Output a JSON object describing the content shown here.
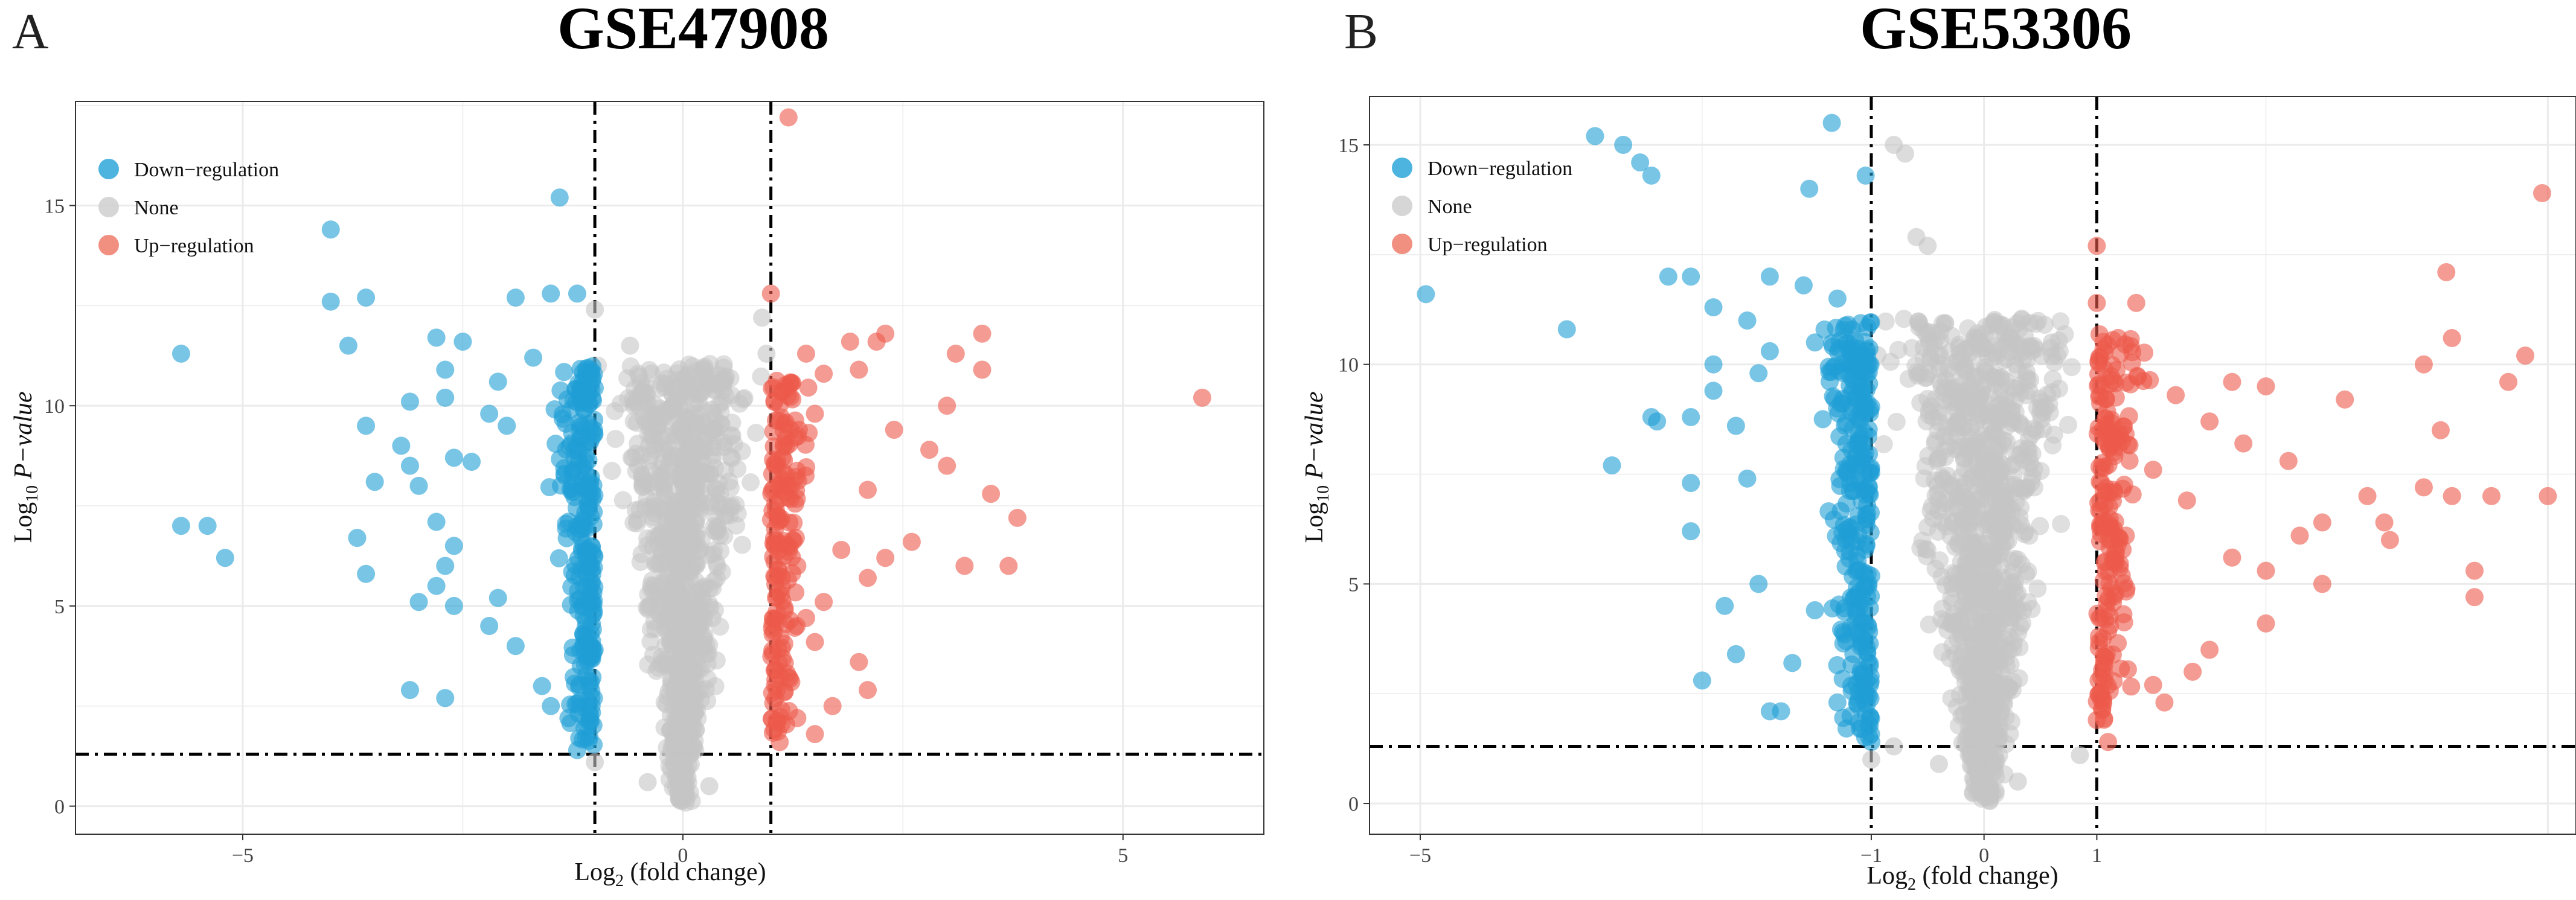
{
  "figure": {
    "background": "#ffffff",
    "grid_color": "#ebebeb",
    "border_color": "#333333"
  },
  "chart_data": [
    {
      "type": "scatter",
      "panel_label": "A",
      "title": "GSE47908",
      "xlabel": {
        "prefix": "Log",
        "sub": "2",
        "rest": " (fold change)"
      },
      "ylabel": {
        "prefix": "Log",
        "sub": "10",
        "plain": " ",
        "italic": "P−value"
      },
      "xlim": [
        -6.9,
        6.6
      ],
      "ylim": [
        -0.7,
        17.6
      ],
      "xticks": [
        -5,
        0,
        5
      ],
      "xtick_labels": [
        "−5",
        "0",
        "5"
      ],
      "yticks": [
        0,
        5,
        10,
        15
      ],
      "ytick_labels": [
        "0",
        "5",
        "10",
        "15"
      ],
      "fc_threshold": [
        -1,
        1
      ],
      "p_threshold": 1.3,
      "legend": [
        {
          "label": "Down−regulation",
          "color": "#2ea7d9"
        },
        {
          "label": "None",
          "color": "#cfcfcf"
        },
        {
          "label": "Up−regulation",
          "color": "#ef7b6b"
        }
      ],
      "series": [
        {
          "name": "Down−regulation",
          "color": "#1f9fd6",
          "points": [
            [
              -4.0,
              14.4
            ],
            [
              -1.4,
              15.2
            ],
            [
              -3.6,
              12.7
            ],
            [
              -4.0,
              12.6
            ],
            [
              -1.5,
              12.8
            ],
            [
              -1.9,
              12.7
            ],
            [
              -1.2,
              12.8
            ],
            [
              -5.7,
              11.3
            ],
            [
              -3.8,
              11.5
            ],
            [
              -2.8,
              11.7
            ],
            [
              -2.5,
              11.6
            ],
            [
              -1.7,
              11.2
            ],
            [
              -2.7,
              10.9
            ],
            [
              -3.1,
              10.1
            ],
            [
              -2.1,
              10.6
            ],
            [
              -2.7,
              10.2
            ],
            [
              -2.2,
              9.8
            ],
            [
              -3.6,
              9.5
            ],
            [
              -2.0,
              9.5
            ],
            [
              -3.2,
              9.0
            ],
            [
              -3.1,
              8.5
            ],
            [
              -3.5,
              8.1
            ],
            [
              -3.0,
              8.0
            ],
            [
              -2.4,
              8.6
            ],
            [
              -2.6,
              8.7
            ],
            [
              -5.7,
              7.0
            ],
            [
              -5.4,
              7.0
            ],
            [
              -3.7,
              6.7
            ],
            [
              -5.2,
              6.2
            ],
            [
              -2.8,
              7.1
            ],
            [
              -2.6,
              6.5
            ],
            [
              -2.7,
              6.0
            ],
            [
              -3.6,
              5.8
            ],
            [
              -2.8,
              5.5
            ],
            [
              -3.0,
              5.1
            ],
            [
              -2.6,
              5.0
            ],
            [
              -2.1,
              5.2
            ],
            [
              -2.2,
              4.5
            ],
            [
              -1.9,
              4.0
            ],
            [
              -3.1,
              2.9
            ],
            [
              -2.7,
              2.7
            ],
            [
              -1.6,
              3.0
            ],
            [
              -1.5,
              2.5
            ],
            [
              -1.3,
              2.2
            ],
            [
              -1.2,
              1.4
            ],
            [
              -1.1,
              1.7
            ]
          ]
        },
        {
          "name": "None",
          "color": "#c4c4c4",
          "points": [
            [
              -1.0,
              12.4
            ],
            [
              -0.6,
              11.5
            ],
            [
              0.95,
              11.3
            ],
            [
              0.9,
              12.2
            ],
            [
              -0.5,
              10.0
            ],
            [
              0.45,
              10.1
            ],
            [
              -1.0,
              1.1
            ],
            [
              -0.4,
              0.6
            ],
            [
              0.3,
              0.5
            ]
          ]
        },
        {
          "name": "Up−regulation",
          "color": "#ec5a4b",
          "points": [
            [
              1.2,
              17.2
            ],
            [
              1.0,
              12.8
            ],
            [
              1.4,
              11.3
            ],
            [
              1.9,
              11.6
            ],
            [
              2.2,
              11.6
            ],
            [
              2.3,
              11.8
            ],
            [
              3.4,
              11.8
            ],
            [
              3.1,
              11.3
            ],
            [
              3.4,
              10.9
            ],
            [
              3.0,
              10.0
            ],
            [
              5.9,
              10.2
            ],
            [
              1.6,
              10.8
            ],
            [
              2.0,
              10.9
            ],
            [
              1.5,
              9.8
            ],
            [
              2.4,
              9.4
            ],
            [
              2.8,
              8.9
            ],
            [
              3.0,
              8.5
            ],
            [
              3.5,
              7.8
            ],
            [
              3.8,
              7.2
            ],
            [
              2.1,
              7.9
            ],
            [
              2.6,
              6.6
            ],
            [
              2.3,
              6.2
            ],
            [
              1.8,
              6.4
            ],
            [
              1.3,
              6.0
            ],
            [
              3.7,
              6.0
            ],
            [
              3.2,
              6.0
            ],
            [
              2.1,
              5.7
            ],
            [
              1.6,
              5.1
            ],
            [
              1.4,
              4.7
            ],
            [
              1.5,
              4.1
            ],
            [
              2.0,
              3.6
            ],
            [
              2.1,
              2.9
            ],
            [
              1.7,
              2.5
            ],
            [
              1.3,
              2.2
            ],
            [
              1.1,
              1.6
            ],
            [
              1.5,
              1.8
            ]
          ]
        }
      ]
    },
    {
      "type": "scatter",
      "panel_label": "B",
      "title": "GSE53306",
      "xlabel": {
        "prefix": "Log",
        "sub": "2",
        "rest": " (fold change)"
      },
      "ylabel": {
        "prefix": "Log",
        "sub": "10",
        "plain": " ",
        "italic": "P−value"
      },
      "xlim": [
        -5.45,
        5.25
      ],
      "ylim": [
        -0.7,
        16.1
      ],
      "xticks": [
        -5,
        -1,
        0,
        1
      ],
      "xtick_labels": [
        "−5",
        "−1",
        "0",
        "1"
      ],
      "yticks": [
        0,
        5,
        10,
        15
      ],
      "ytick_labels": [
        "0",
        "5",
        "10",
        "15"
      ],
      "fc_threshold": [
        -1,
        1
      ],
      "p_threshold": 1.3,
      "legend": [
        {
          "label": "Down−regulation",
          "color": "#2ea7d9"
        },
        {
          "label": "None",
          "color": "#cfcfcf"
        },
        {
          "label": "Up−regulation",
          "color": "#ef7b6b"
        }
      ],
      "series": [
        {
          "name": "Down−regulation",
          "color": "#1f9fd6",
          "points": [
            [
              -3.45,
              15.2
            ],
            [
              -3.2,
              15.0
            ],
            [
              -3.05,
              14.6
            ],
            [
              -2.95,
              14.3
            ],
            [
              -1.35,
              15.5
            ],
            [
              -1.55,
              14.0
            ],
            [
              -1.05,
              14.3
            ],
            [
              -4.95,
              11.6
            ],
            [
              -3.7,
              10.8
            ],
            [
              -2.4,
              11.3
            ],
            [
              -2.8,
              12.0
            ],
            [
              -2.6,
              12.0
            ],
            [
              -2.1,
              11.0
            ],
            [
              -1.9,
              12.0
            ],
            [
              -1.6,
              11.8
            ],
            [
              -1.3,
              11.5
            ],
            [
              -1.9,
              10.3
            ],
            [
              -2.4,
              10.0
            ],
            [
              -2.0,
              9.8
            ],
            [
              -2.4,
              9.4
            ],
            [
              -2.6,
              8.8
            ],
            [
              -2.2,
              8.6
            ],
            [
              -2.95,
              8.8
            ],
            [
              -2.9,
              8.7
            ],
            [
              -3.3,
              7.7
            ],
            [
              -2.6,
              7.3
            ],
            [
              -2.1,
              7.4
            ],
            [
              -2.6,
              6.2
            ],
            [
              -2.0,
              5.0
            ],
            [
              -2.3,
              4.5
            ],
            [
              -2.2,
              3.4
            ],
            [
              -2.5,
              2.8
            ],
            [
              -1.9,
              2.1
            ],
            [
              -1.8,
              2.1
            ],
            [
              -1.5,
              4.4
            ],
            [
              -1.7,
              3.2
            ],
            [
              -1.3,
              2.3
            ],
            [
              -1.1,
              1.7
            ],
            [
              -1.0,
              1.4
            ]
          ]
        },
        {
          "name": "None",
          "color": "#c4c4c4",
          "points": [
            [
              -0.8,
              15.0
            ],
            [
              -0.7,
              14.8
            ],
            [
              -0.6,
              12.9
            ],
            [
              -0.5,
              12.7
            ],
            [
              0.6,
              10.5
            ],
            [
              0.4,
              9.4
            ],
            [
              -1.0,
              1.0
            ],
            [
              -0.8,
              1.3
            ],
            [
              0.3,
              0.5
            ],
            [
              0.85,
              1.1
            ],
            [
              -0.4,
              0.9
            ]
          ]
        },
        {
          "name": "Up−regulation",
          "color": "#ec5a4b",
          "points": [
            [
              1.0,
              12.7
            ],
            [
              1.0,
              11.4
            ],
            [
              1.35,
              11.4
            ],
            [
              4.1,
              12.1
            ],
            [
              4.95,
              13.9
            ],
            [
              4.15,
              10.6
            ],
            [
              3.9,
              10.0
            ],
            [
              4.8,
              10.2
            ],
            [
              4.65,
              9.6
            ],
            [
              2.5,
              9.5
            ],
            [
              3.2,
              9.2
            ],
            [
              4.05,
              8.5
            ],
            [
              3.9,
              7.2
            ],
            [
              4.15,
              7.0
            ],
            [
              4.5,
              7.0
            ],
            [
              5.0,
              7.0
            ],
            [
              3.55,
              6.4
            ],
            [
              3.0,
              6.4
            ],
            [
              4.35,
              5.3
            ],
            [
              4.35,
              4.7
            ],
            [
              2.5,
              4.1
            ],
            [
              2.0,
              3.5
            ],
            [
              1.85,
              3.0
            ],
            [
              1.5,
              2.7
            ],
            [
              1.6,
              2.3
            ],
            [
              1.0,
              1.9
            ],
            [
              1.1,
              1.4
            ],
            [
              2.2,
              9.6
            ],
            [
              1.7,
              9.3
            ],
            [
              2.0,
              8.7
            ],
            [
              2.3,
              8.2
            ],
            [
              2.7,
              7.8
            ],
            [
              3.4,
              7.0
            ],
            [
              3.6,
              6.0
            ],
            [
              2.8,
              6.1
            ],
            [
              2.5,
              5.3
            ],
            [
              3.0,
              5.0
            ],
            [
              2.2,
              5.6
            ],
            [
              1.8,
              6.9
            ],
            [
              1.5,
              7.6
            ]
          ]
        }
      ]
    }
  ]
}
